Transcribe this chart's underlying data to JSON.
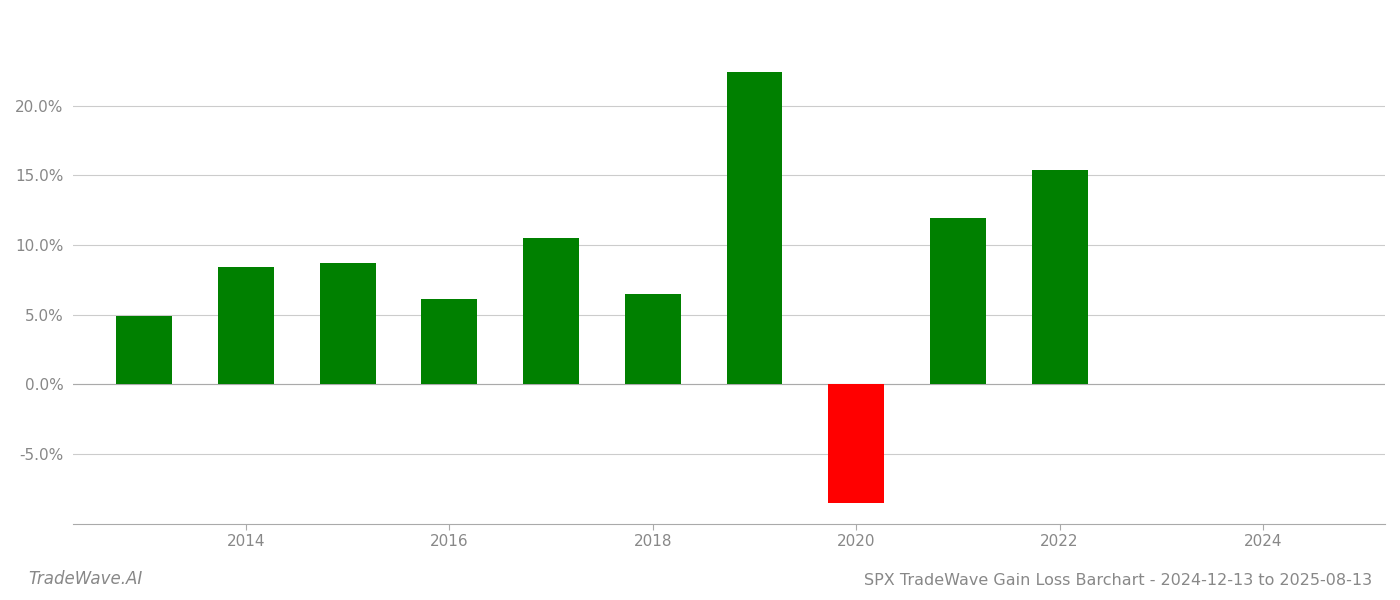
{
  "years": [
    2013,
    2014,
    2015,
    2016,
    2017,
    2018,
    2019,
    2020,
    2021,
    2022,
    2023
  ],
  "values": [
    0.049,
    0.084,
    0.087,
    0.061,
    0.105,
    0.065,
    0.224,
    -0.085,
    0.119,
    0.154,
    0.0
  ],
  "bar_colors": [
    "#008000",
    "#008000",
    "#008000",
    "#008000",
    "#008000",
    "#008000",
    "#008000",
    "#ff0000",
    "#008000",
    "#008000",
    "#008000"
  ],
  "title": "SPX TradeWave Gain Loss Barchart - 2024-12-13 to 2025-08-13",
  "watermark": "TradeWave.AI",
  "xlim": [
    2012.3,
    2025.2
  ],
  "ylim": [
    -0.1,
    0.265
  ],
  "yticks": [
    -0.05,
    0.0,
    0.05,
    0.1,
    0.15,
    0.2
  ],
  "xticks": [
    2014,
    2016,
    2018,
    2020,
    2022,
    2024
  ],
  "background_color": "#ffffff",
  "grid_color": "#cccccc",
  "grid_linewidth": 0.8,
  "bar_width": 0.55,
  "title_fontsize": 11.5,
  "tick_fontsize": 11,
  "watermark_fontsize": 12,
  "spine_color": "#aaaaaa",
  "tick_color": "#888888"
}
